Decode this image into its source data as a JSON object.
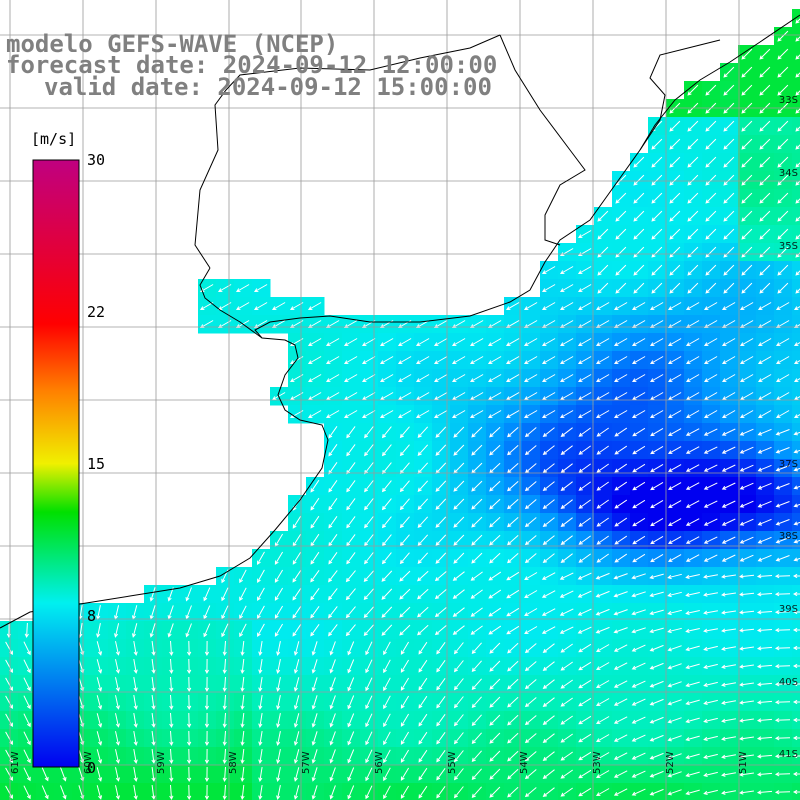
{
  "title": {
    "model": "modelo GEFS-WAVE (NCEP)",
    "forecast_date": "forecast date: 2024-09-12 12:00:00",
    "valid_date": "valid date: 2024-09-12 15:00:00",
    "color": "#808080"
  },
  "colorbar": {
    "unit": "[m/s]",
    "min": 0,
    "max": 30,
    "ticks": [
      {
        "value": 30,
        "label": "30"
      },
      {
        "value": 22,
        "label": "22"
      },
      {
        "value": 15,
        "label": "15"
      },
      {
        "value": 8,
        "label": "8"
      },
      {
        "value": 0,
        "label": "0"
      }
    ],
    "stops": [
      "#0000f0",
      "#00f0f0",
      "#00e000",
      "#f0f000",
      "#ff8000",
      "#ff0000",
      "#c00080"
    ]
  },
  "latitude_labels": [
    "33S",
    "34S",
    "35S",
    "37S",
    "38S",
    "39S",
    "40S",
    "41S"
  ],
  "longitude_labels": [
    "61W",
    "60W",
    "59W",
    "58W",
    "57W",
    "56W",
    "55W",
    "54W",
    "53W",
    "52W",
    "51W"
  ],
  "colors": {
    "land": "#ffffff",
    "grid": "#9a9a9a",
    "coast": "#000000",
    "arrow": "#ffffff",
    "label": "#808080"
  }
}
